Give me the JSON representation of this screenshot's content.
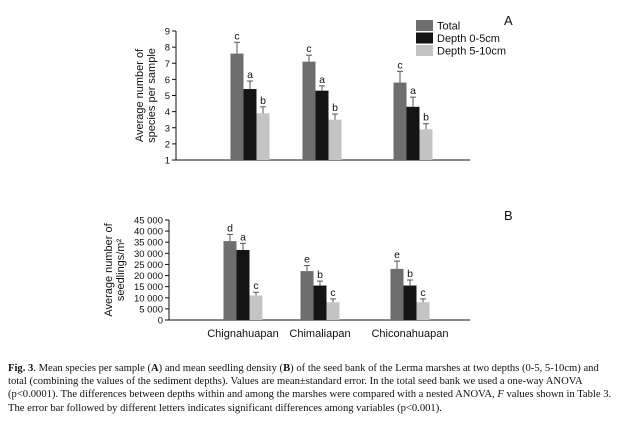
{
  "colors": {
    "total": "#6e6e6e",
    "depth_0_5": "#141414",
    "depth_5_10": "#c4c4c4",
    "axis": "#111111",
    "error_bar": "#555555"
  },
  "legend": [
    "Total",
    "Depth 0-5cm",
    "Depth 5-10cm"
  ],
  "chart_data": [
    {
      "type": "bar",
      "panel_label": "A",
      "ylabel_lines": [
        "Average number of",
        "species per sample"
      ],
      "ylim": [
        1,
        9
      ],
      "yticks": [
        1,
        2,
        3,
        4,
        5,
        6,
        7,
        8,
        9
      ],
      "ytick_labels": [
        "1",
        "2",
        "3",
        "4",
        "5",
        "6",
        "7",
        "8",
        "9"
      ],
      "categories": [
        "Chignahuapan",
        "Chimaliapan",
        "Chiconahuapan"
      ],
      "show_category_labels": false,
      "series": [
        {
          "name": "Total",
          "values": [
            7.6,
            7.1,
            5.8
          ],
          "errors": [
            0.7,
            0.4,
            0.7
          ],
          "letters": [
            "c",
            "c",
            "c"
          ]
        },
        {
          "name": "Depth 0-5cm",
          "values": [
            5.4,
            5.3,
            4.3
          ],
          "errors": [
            0.5,
            0.3,
            0.6
          ],
          "letters": [
            "a",
            "a",
            "a"
          ]
        },
        {
          "name": "Depth 5-10cm",
          "values": [
            3.9,
            3.5,
            2.9
          ],
          "errors": [
            0.4,
            0.35,
            0.35
          ],
          "letters": [
            "b",
            "b",
            "b"
          ]
        }
      ],
      "legend_position": "top-right"
    },
    {
      "type": "bar",
      "panel_label": "B",
      "ylabel_lines": [
        "Average number of",
        "seedlings/m²"
      ],
      "ylim": [
        0,
        45000
      ],
      "yticks": [
        0,
        5000,
        10000,
        15000,
        20000,
        25000,
        30000,
        35000,
        40000,
        45000
      ],
      "ytick_labels": [
        "0",
        "5 000",
        "10 000",
        "15 000",
        "20 000",
        "25 000",
        "30 000",
        "35 000",
        "40 000",
        "45 000"
      ],
      "categories": [
        "Chignahuapan",
        "Chimaliapan",
        "Chiconahuapan"
      ],
      "show_category_labels": true,
      "series": [
        {
          "name": "Total",
          "values": [
            35500,
            22000,
            23000
          ],
          "errors": [
            3000,
            2500,
            3500
          ],
          "letters": [
            "d",
            "e",
            "e"
          ]
        },
        {
          "name": "Depth 0-5cm",
          "values": [
            31500,
            15500,
            15500
          ],
          "errors": [
            3000,
            2000,
            2500
          ],
          "letters": [
            "a",
            "b",
            "b"
          ]
        },
        {
          "name": "Depth 5-10cm",
          "values": [
            11000,
            8000,
            8000
          ],
          "errors": [
            1500,
            1500,
            1500
          ],
          "letters": [
            "c",
            "c",
            "c"
          ]
        }
      ]
    }
  ],
  "caption": {
    "fig_label": "Fig. 3",
    "part1": ". Mean species per sample (",
    "bold_a": "A",
    "part2": ") and mean seedling density (",
    "bold_b": "B",
    "part3": ") of the seed bank of the Lerma marshes at two depths (0-5, 5-10cm) and total (combining the values of the sediment depths). Values are mean±standard error. In the total seed bank we used a one-way ANOVA (p<0.0001). The differences between depths within and among the marshes were compared with a nested ANOVA, ",
    "italic_f": "F",
    "part4": " values shown in Table 3. The error bar followed by different letters indicates significant differences among variables (p<0.001)."
  }
}
